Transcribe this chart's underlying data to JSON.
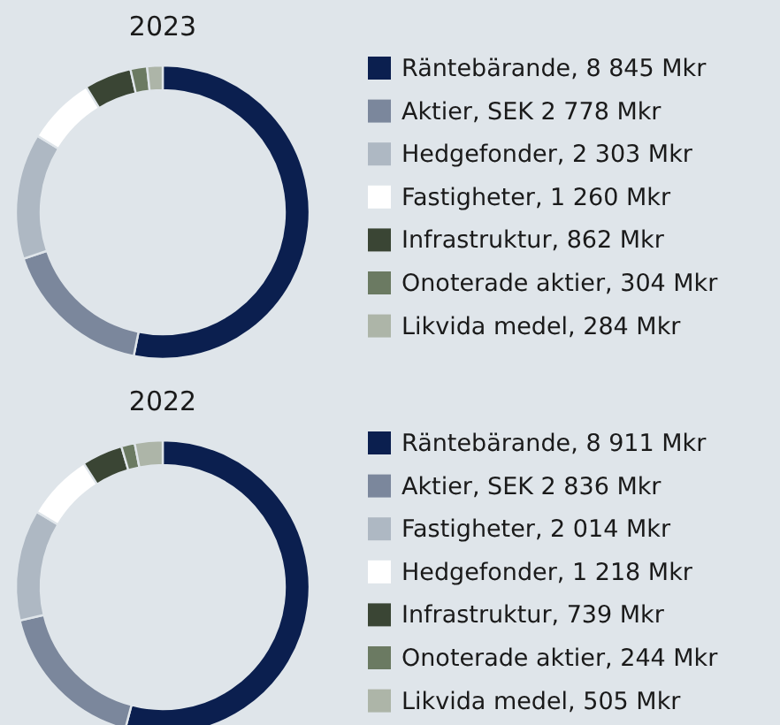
{
  "chart_data": [
    {
      "type": "donut",
      "title": "2023",
      "legend": "right",
      "categories": [
        "Räntebärande, 8 845 Mkr",
        "Aktier, SEK 2 778 Mkr",
        "Hedgefonder, 2 303 Mkr",
        "Fastigheter, 1 260 Mkr",
        "Infrastruktur, 862 Mkr",
        "Onoterade aktier, 304 Mkr",
        "Likvida medel, 284 Mkr"
      ],
      "values": [
        8845,
        2778,
        2303,
        1260,
        862,
        304,
        284
      ],
      "colors": [
        "#0b1f4f",
        "#7b879c",
        "#aeb8c3",
        "#ffffff",
        "#3a4534",
        "#6b7a62",
        "#adb5a8"
      ]
    },
    {
      "type": "donut",
      "title": "2022",
      "legend": "right",
      "categories": [
        "Räntebärande, 8 911 Mkr",
        "Aktier, SEK 2 836 Mkr",
        "Fastigheter, 2 014 Mkr",
        "Hedgefonder, 1 218 Mkr",
        "Infrastruktur, 739 Mkr",
        "Onoterade aktier, 244 Mkr",
        "Likvida medel, 505 Mkr"
      ],
      "values": [
        8911,
        2836,
        2014,
        1218,
        739,
        244,
        505
      ],
      "colors": [
        "#0b1f4f",
        "#7b879c",
        "#aeb8c3",
        "#ffffff",
        "#3a4534",
        "#6b7a62",
        "#adb5a8"
      ]
    }
  ]
}
